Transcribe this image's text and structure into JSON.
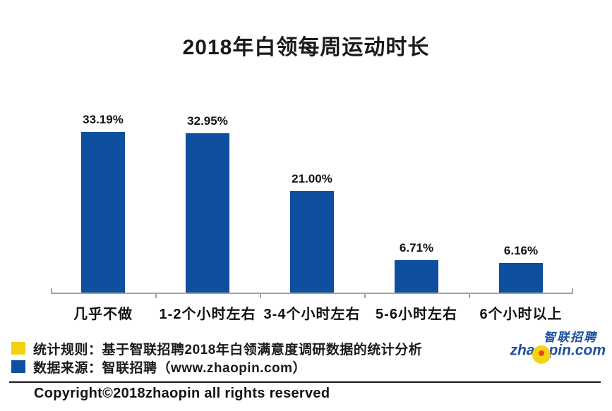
{
  "chart_data": {
    "type": "bar",
    "title": "2018年白领每周运动时长",
    "categories": [
      "几乎不做",
      "1-2个小时左右",
      "3-4个小时左右",
      "5-6小时左右",
      "6个小时以上"
    ],
    "values": [
      33.19,
      32.95,
      21.0,
      6.71,
      6.16
    ],
    "value_labels": [
      "33.19%",
      "32.95%",
      "21.00%",
      "6.71%",
      "6.16%"
    ],
    "xlabel": "",
    "ylabel": "",
    "ylim": [
      0,
      35
    ],
    "grid": false,
    "legend_position": "none",
    "bar_color": "#0e4f9e",
    "axis_color": "#a3a3a3"
  },
  "footnotes": [
    {
      "marker_color": "#f2d013",
      "text": "统计规则：基于智联招聘2018年白领满意度调研数据的统计分析"
    },
    {
      "marker_color": "#0e4f9e",
      "text": "数据来源：智联招聘（www.zhaopin.com）"
    }
  ],
  "logo": {
    "cn_text": "智联招聘",
    "en_prefix": "zha",
    "en_suffix": "pin.com",
    "text_color": "#1c50a1",
    "ball_color": "#f6d214",
    "dot_color": "#e8481c"
  },
  "copyright": "Copyright©2018zhaopin all rights reserved"
}
